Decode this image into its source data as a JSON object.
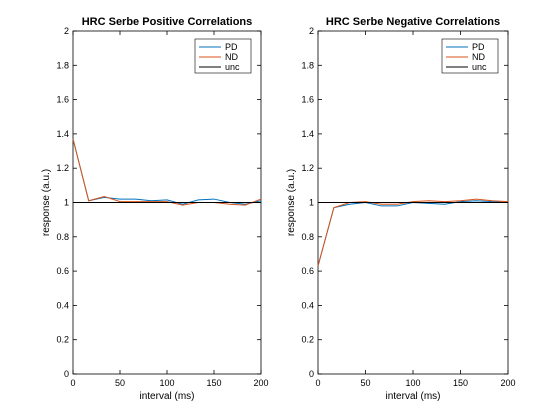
{
  "chart_data": [
    {
      "type": "line",
      "title": "HRC Serbe Positive Correlations",
      "xlabel": "interval (ms)",
      "ylabel": "response (a.u.)",
      "xlim": [
        0,
        200
      ],
      "ylim": [
        0,
        2
      ],
      "xticks": [
        "0",
        "50",
        "100",
        "150",
        "200"
      ],
      "yticks": [
        "0",
        "0.2",
        "0.4",
        "0.6",
        "0.8",
        "1",
        "1.2",
        "1.4",
        "1.6",
        "1.8",
        "2"
      ],
      "legend_position": "top-right",
      "x": [
        0,
        16.7,
        33.3,
        50,
        66.7,
        83.3,
        100,
        116.7,
        133.3,
        150,
        166.7,
        183.3,
        200
      ],
      "series": [
        {
          "name": "PD",
          "color": "#0072bd",
          "values": [
            1.37,
            1.01,
            1.03,
            1.02,
            1.02,
            1.01,
            1.015,
            0.99,
            1.015,
            1.02,
            1.0,
            0.99,
            1.01
          ]
        },
        {
          "name": "ND",
          "color": "#d95319",
          "values": [
            1.37,
            1.01,
            1.035,
            1.005,
            1.005,
            1.005,
            1.005,
            0.985,
            1.0,
            1.0,
            0.99,
            0.985,
            1.02
          ]
        },
        {
          "name": "unc",
          "color": "#000000",
          "values": [
            1,
            1,
            1,
            1,
            1,
            1,
            1,
            1,
            1,
            1,
            1,
            1,
            1
          ]
        }
      ]
    },
    {
      "type": "line",
      "title": "HRC Serbe Negative Correlations",
      "xlabel": "interval (ms)",
      "ylabel": "response (a.u.)",
      "xlim": [
        0,
        200
      ],
      "ylim": [
        0,
        2
      ],
      "xticks": [
        "0",
        "50",
        "100",
        "150",
        "200"
      ],
      "yticks": [
        "0",
        "0.2",
        "0.4",
        "0.6",
        "0.8",
        "1",
        "1.2",
        "1.4",
        "1.6",
        "1.8",
        "2"
      ],
      "legend_position": "top-right",
      "x": [
        0,
        16.7,
        33.3,
        50,
        66.7,
        83.3,
        100,
        116.7,
        133.3,
        150,
        166.7,
        183.3,
        200
      ],
      "series": [
        {
          "name": "PD",
          "color": "#0072bd",
          "values": [
            0.63,
            0.97,
            0.99,
            1.0,
            0.98,
            0.98,
            1.0,
            0.995,
            0.99,
            1.005,
            1.01,
            1.005,
            1.0
          ]
        },
        {
          "name": "ND",
          "color": "#d95319",
          "values": [
            0.63,
            0.97,
            1.0,
            1.005,
            0.99,
            0.99,
            1.005,
            1.01,
            1.005,
            1.01,
            1.02,
            1.01,
            1.005
          ]
        },
        {
          "name": "unc",
          "color": "#000000",
          "values": [
            1,
            1,
            1,
            1,
            1,
            1,
            1,
            1,
            1,
            1,
            1,
            1,
            1
          ]
        }
      ]
    }
  ]
}
